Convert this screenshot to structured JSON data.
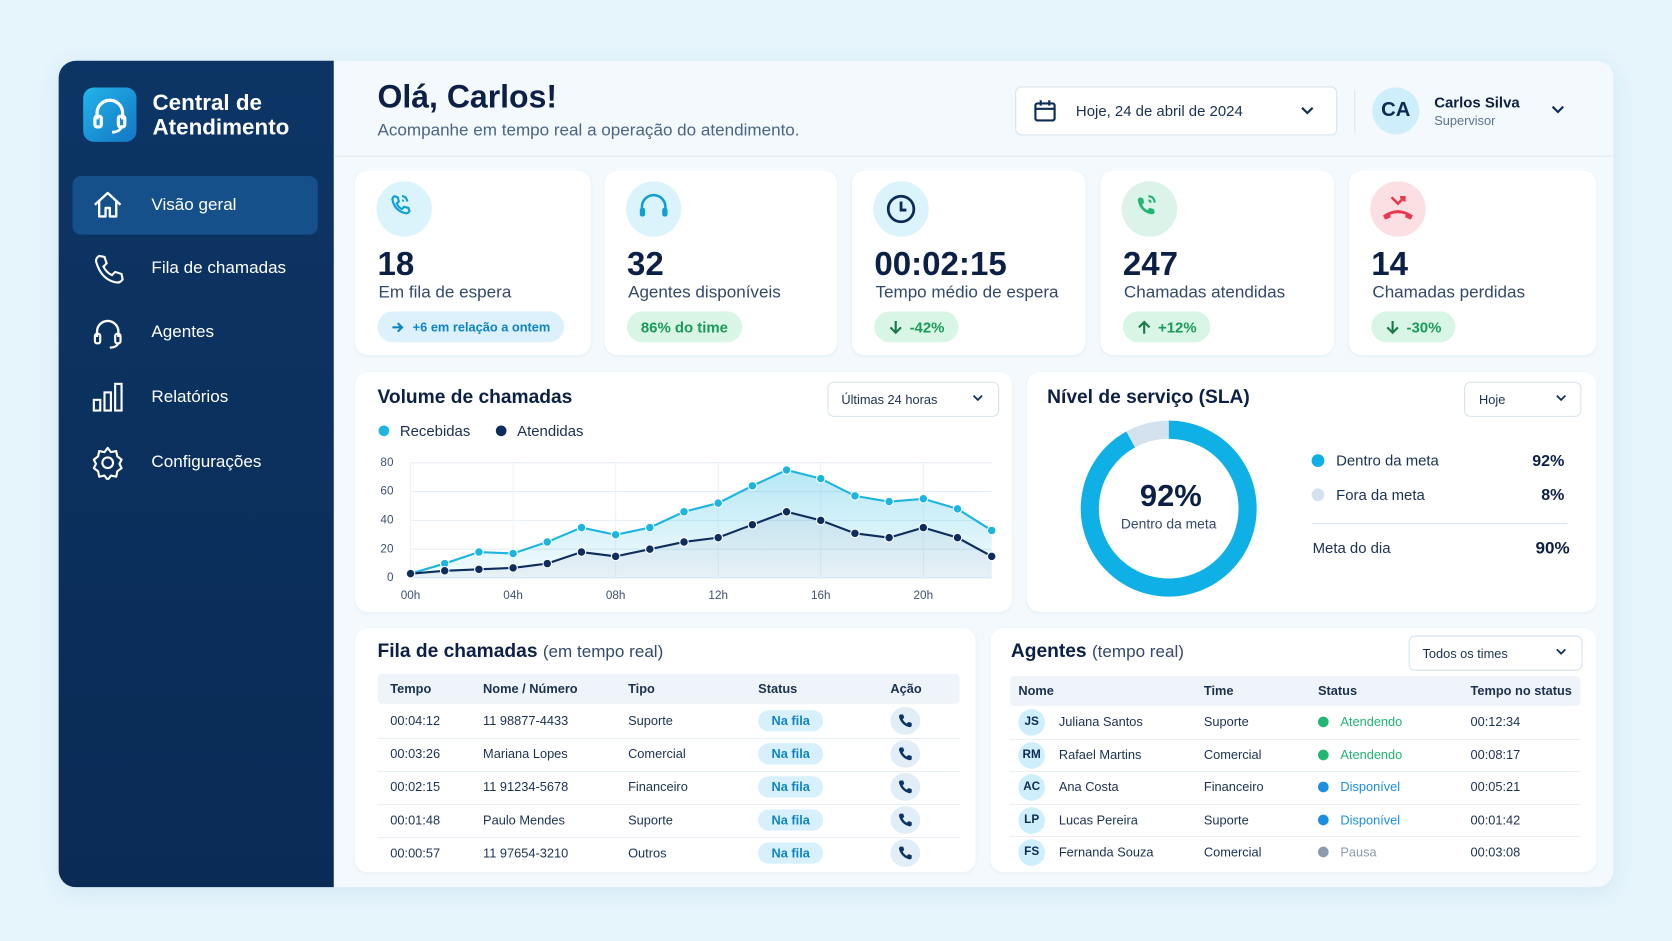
{
  "sidebar": {
    "title": "Central de Atendimento",
    "nav": [
      "Visão geral",
      "Fila de chamadas",
      "Agentes",
      "Relatórios",
      "Configurações"
    ]
  },
  "header": {
    "greeting": "Olá, Carlos!",
    "subtitle": "Acompanhe em tempo real a operação do atendimento.",
    "date": "Hoje, 24 de abril de 2024",
    "user": {
      "initials": "CA",
      "name": "Carlos Silva",
      "role": "Supervisor"
    }
  },
  "kpis": [
    {
      "value": 18,
      "label": "Em fila de espera",
      "badge": "+6 em relação a ontem",
      "color": "#1cb5e0"
    },
    {
      "value": 32,
      "label": "Agentes disponíveis",
      "badge": "86% do time",
      "color": "#1cb5e0"
    },
    {
      "value": "00:02:15",
      "label": "Tempo médio de espera",
      "badge": "-42%",
      "color": "#1cb5e0"
    },
    {
      "value": 247,
      "label": "Chamadas atendidas",
      "badge": "+12%",
      "color": "#22b573"
    },
    {
      "value": 14,
      "label": "Chamadas perdidas",
      "badge": "-30%",
      "color": "#e8384f"
    }
  ],
  "chart_data": [
    {
      "type": "line",
      "title": "Volume de chamadas",
      "filter": "Últimas 24 horas",
      "categories": [
        "00h",
        null,
        null,
        "04h",
        null,
        null,
        "08h",
        null,
        null,
        "12h",
        null,
        null,
        "16h",
        null,
        null,
        "20h",
        null,
        null
      ],
      "series": [
        {
          "name": "Recebidas",
          "color": "#1cb5e0",
          "values": [
            3,
            10,
            18,
            17,
            25,
            35,
            30,
            35,
            46,
            52,
            64,
            75,
            69,
            57,
            53,
            55,
            48,
            33
          ]
        },
        {
          "name": "Atendidas",
          "color": "#0f2d5c",
          "values": [
            3,
            5,
            6,
            7,
            10,
            18,
            15,
            20,
            25,
            28,
            37,
            46,
            40,
            31,
            28,
            35,
            28,
            15
          ]
        }
      ],
      "ylim": [
        0,
        80
      ],
      "yticks": [
        0,
        20,
        40,
        60,
        80
      ],
      "grid": true
    },
    {
      "type": "donut",
      "title": "Nível de serviço (SLA)",
      "filter": "Hoje",
      "labels": [
        "Dentro da meta",
        "Fora da meta"
      ],
      "values": [
        92,
        8
      ],
      "value_labels": [
        "92%",
        "8%"
      ],
      "colors": [
        "#0fb0e6",
        "#d3e2ee"
      ],
      "goal": {
        "label": "Meta do dia",
        "value": "90%"
      }
    }
  ],
  "queue": {
    "title": "Fila de chamadas",
    "subtitle": "(em tempo real)",
    "columns": [
      "Tempo",
      "Nome / Número",
      "Tipo",
      "Status",
      "Ação"
    ],
    "rows": [
      [
        "00:04:12",
        "11 98877-4433",
        "Suporte",
        "Na fila"
      ],
      [
        "00:03:26",
        "Mariana Lopes",
        "Comercial",
        "Na fila"
      ],
      [
        "00:02:15",
        "11 91234-5678",
        "Financeiro",
        "Na fila"
      ],
      [
        "00:01:48",
        "Paulo Mendes",
        "Suporte",
        "Na fila"
      ],
      [
        "00:00:57",
        "11 97654-3210",
        "Outros",
        "Na fila"
      ]
    ]
  },
  "agents": {
    "title": "Agentes",
    "subtitle": "(tempo real)",
    "filter": "Todos os times",
    "columns": [
      "Nome",
      "Time",
      "Status",
      "Tempo no status"
    ],
    "rows": [
      {
        "initials": "JS",
        "name": "Juliana Santos",
        "team": "Suporte",
        "status": "Atendendo",
        "time": "00:12:34",
        "color": "#22b573"
      },
      {
        "initials": "RM",
        "name": "Rafael Martins",
        "team": "Comercial",
        "status": "Atendendo",
        "time": "00:08:17",
        "color": "#22b573"
      },
      {
        "initials": "AC",
        "name": "Ana Costa",
        "team": "Financeiro",
        "status": "Disponível",
        "time": "00:05:21",
        "color": "#1a8fe0"
      },
      {
        "initials": "LP",
        "name": "Lucas Pereira",
        "team": "Suporte",
        "status": "Disponível",
        "time": "00:01:42",
        "color": "#1a8fe0"
      },
      {
        "initials": "FS",
        "name": "Fernanda Souza",
        "team": "Comercial",
        "status": "Pausa",
        "time": "00:03:08",
        "color": "#8d9aab"
      }
    ]
  }
}
